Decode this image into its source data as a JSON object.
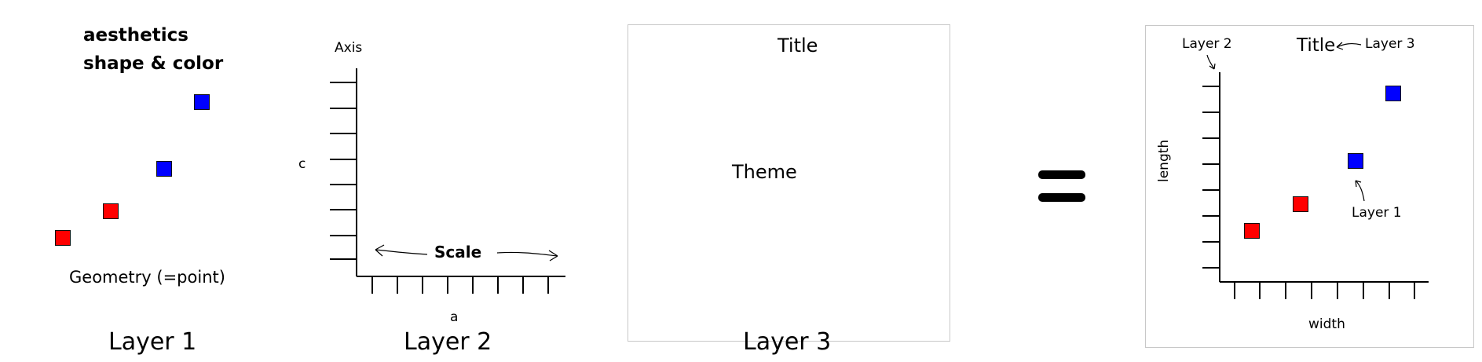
{
  "panel1": {
    "aesthetics_line1": "aesthetics",
    "aesthetics_line2": "shape & color",
    "geometry_label": "Geometry (=point)",
    "layer_title": "Layer 1",
    "points": [
      {
        "color": "#ff0000"
      },
      {
        "color": "#ff0000"
      },
      {
        "color": "#0000ff"
      },
      {
        "color": "#0000ff"
      }
    ]
  },
  "panel2": {
    "axis_label": "Axis",
    "y_label": "c",
    "x_label": "a",
    "scale_label": "Scale",
    "layer_title": "Layer 2"
  },
  "panel3": {
    "title": "Title",
    "theme_label": "Theme",
    "layer_title": "Layer 3"
  },
  "equals": "=",
  "panel4": {
    "title": "Title",
    "layer2_annot": "Layer 2",
    "layer3_annot": "Layer 3",
    "layer1_annot": "Layer 1",
    "y_label": "length",
    "x_label": "width",
    "points": [
      {
        "color": "#ff0000"
      },
      {
        "color": "#ff0000"
      },
      {
        "color": "#0000ff"
      },
      {
        "color": "#0000ff"
      }
    ]
  },
  "colors": {
    "red": "#ff0000",
    "blue": "#0000ff",
    "frame": "#c8c8c8"
  }
}
